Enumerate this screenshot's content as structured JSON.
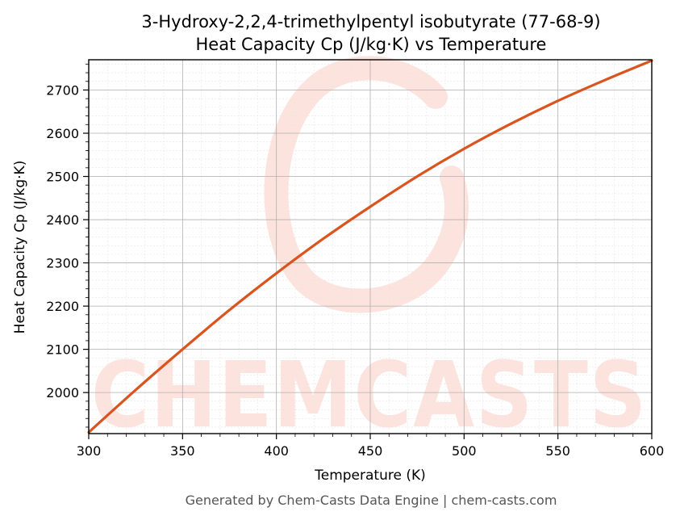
{
  "chart_data": {
    "type": "line",
    "title": "3-Hydroxy-2,2,4-trimethylpentyl isobutyrate (77-68-9)",
    "subtitle": "Heat Capacity Cp (J/kg·K) vs Temperature",
    "xlabel": "Temperature (K)",
    "ylabel": "Heat Capacity Cp (J/kg·K)",
    "xlim": [
      300,
      600
    ],
    "ylim": [
      1905,
      2770
    ],
    "xticks": [
      300,
      350,
      400,
      450,
      500,
      550,
      600
    ],
    "yticks": [
      2000,
      2100,
      2200,
      2300,
      2400,
      2500,
      2600,
      2700
    ],
    "grid": true,
    "line_color": "#d9541e",
    "series": [
      {
        "x": [
          300,
          325,
          350,
          375,
          400,
          425,
          450,
          475,
          500,
          525,
          550,
          575,
          600
        ],
        "values": [
          1908,
          2006,
          2100,
          2191,
          2276,
          2356,
          2430,
          2500,
          2564,
          2622,
          2675,
          2723,
          2768
        ]
      }
    ]
  },
  "watermark": {
    "text": "CHEMCASTS",
    "color": "#fde3dd"
  },
  "footer": "Generated by Chem-Casts Data Engine | chem-casts.com"
}
